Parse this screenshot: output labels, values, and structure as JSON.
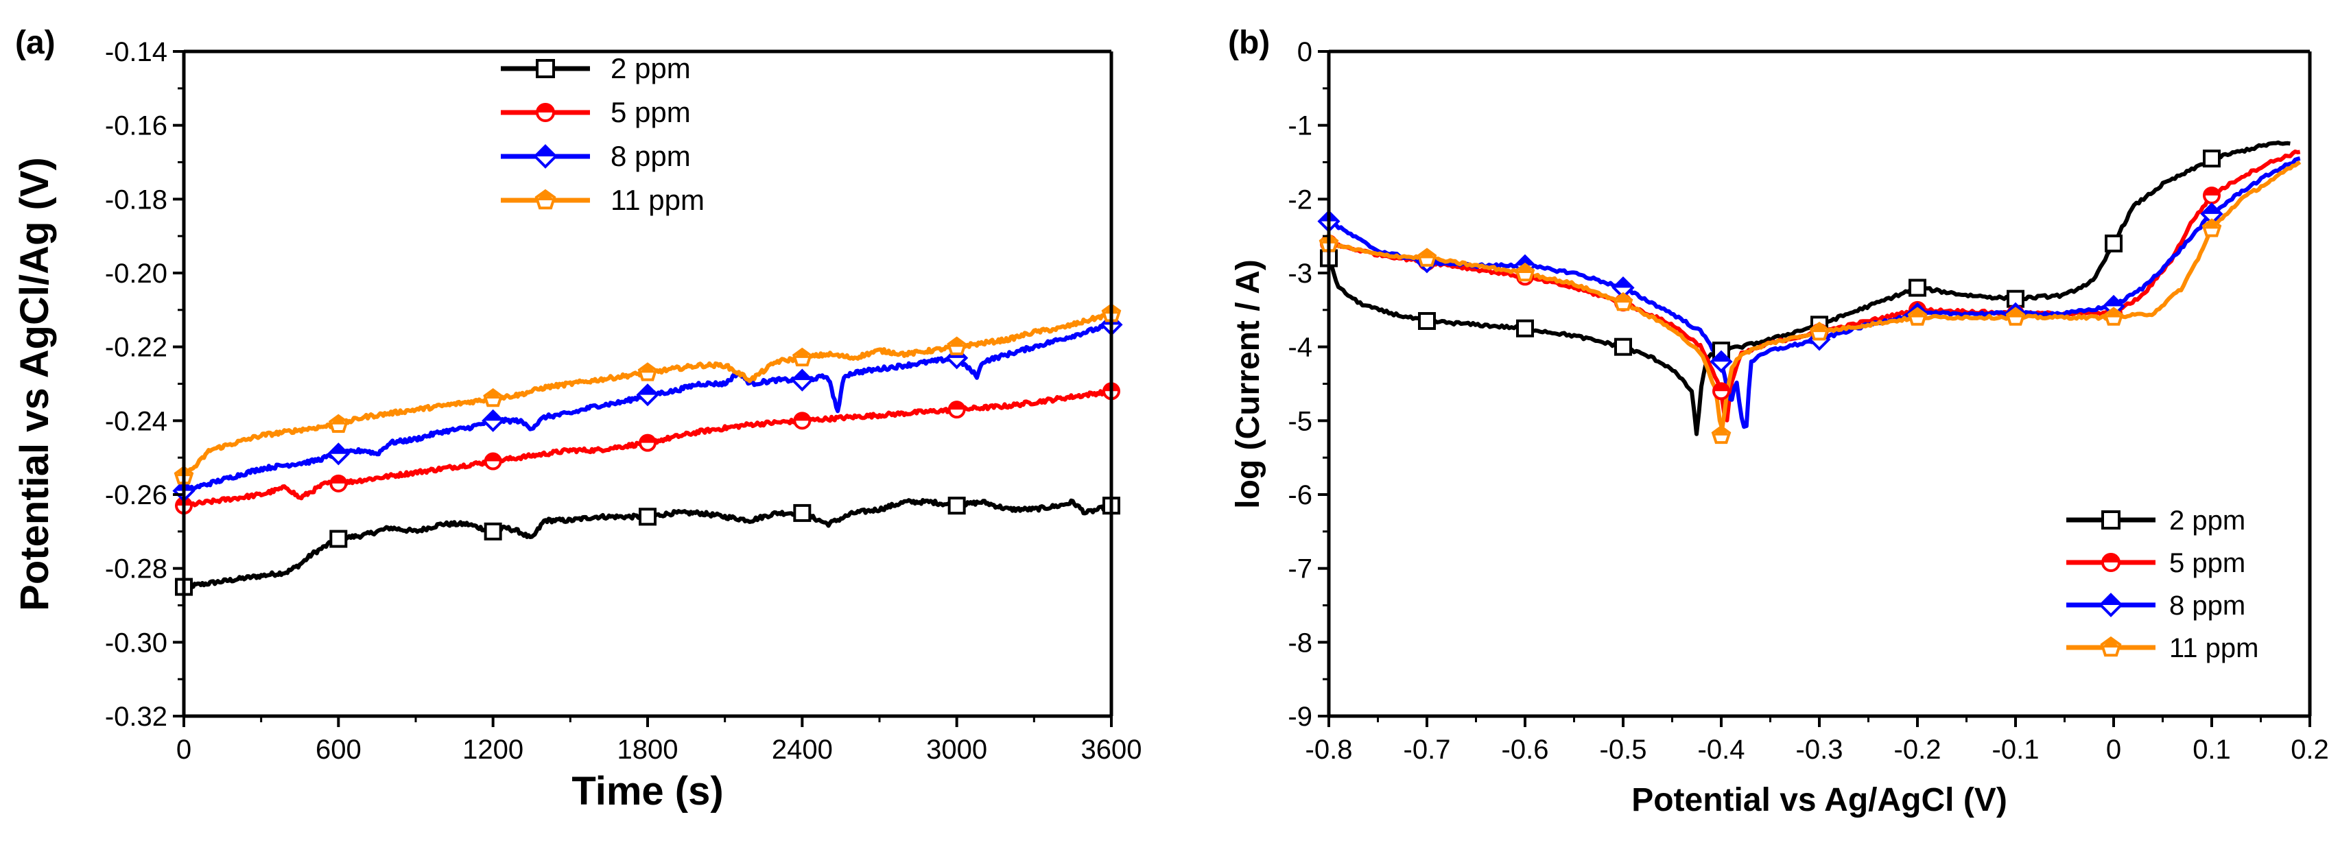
{
  "chart_data": [
    {
      "type": "line",
      "panel_label": "(a)",
      "title": "",
      "xlabel": "Time (s)",
      "ylabel": "Potential vs AgCl/Ag (V)",
      "xlim": [
        0,
        3600
      ],
      "ylim": [
        -0.32,
        -0.14
      ],
      "xticks": [
        0,
        600,
        1200,
        1800,
        2400,
        3000,
        3600
      ],
      "xtick_labels": [
        "0",
        "600",
        "1200",
        "1800",
        "2400",
        "3000",
        "3600"
      ],
      "yticks": [
        -0.32,
        -0.3,
        -0.28,
        -0.26,
        -0.24,
        -0.22,
        -0.2,
        -0.18,
        -0.16,
        -0.14
      ],
      "ytick_labels": [
        "-0.32",
        "-0.30",
        "-0.28",
        "-0.26",
        "-0.24",
        "-0.22",
        "-0.20",
        "-0.18",
        "-0.16",
        "-0.14"
      ],
      "grid": false,
      "legend_position": "top-center",
      "series": [
        {
          "name": "2 ppm",
          "color": "#000000",
          "marker": "square",
          "x": [
            0,
            100,
            200,
            300,
            400,
            450,
            500,
            600,
            700,
            800,
            900,
            1000,
            1100,
            1200,
            1250,
            1300,
            1350,
            1400,
            1500,
            1600,
            1700,
            1800,
            1900,
            2000,
            2100,
            2200,
            2300,
            2400,
            2500,
            2600,
            2700,
            2800,
            2900,
            3000,
            3100,
            3200,
            3300,
            3400,
            3450,
            3500,
            3600
          ],
          "y": [
            -0.285,
            -0.284,
            -0.283,
            -0.282,
            -0.281,
            -0.279,
            -0.276,
            -0.272,
            -0.271,
            -0.269,
            -0.27,
            -0.268,
            -0.268,
            -0.27,
            -0.269,
            -0.27,
            -0.272,
            -0.267,
            -0.267,
            -0.266,
            -0.266,
            -0.266,
            -0.265,
            -0.265,
            -0.266,
            -0.267,
            -0.265,
            -0.265,
            -0.268,
            -0.265,
            -0.264,
            -0.262,
            -0.262,
            -0.263,
            -0.262,
            -0.264,
            -0.264,
            -0.263,
            -0.262,
            -0.265,
            -0.263
          ]
        },
        {
          "name": "5 ppm",
          "color": "#ff0000",
          "marker": "circle",
          "x": [
            0,
            100,
            200,
            300,
            400,
            450,
            500,
            550,
            600,
            800,
            1000,
            1200,
            1400,
            1500,
            1600,
            1800,
            2000,
            2200,
            2400,
            2600,
            2800,
            3000,
            3200,
            3400,
            3600
          ],
          "y": [
            -0.263,
            -0.262,
            -0.261,
            -0.26,
            -0.258,
            -0.261,
            -0.259,
            -0.257,
            -0.257,
            -0.255,
            -0.253,
            -0.251,
            -0.249,
            -0.248,
            -0.248,
            -0.246,
            -0.243,
            -0.241,
            -0.24,
            -0.239,
            -0.238,
            -0.237,
            -0.236,
            -0.234,
            -0.232
          ]
        },
        {
          "name": "8 ppm",
          "color": "#0000ff",
          "marker": "diamond",
          "x": [
            0,
            100,
            200,
            300,
            400,
            500,
            600,
            700,
            750,
            800,
            900,
            1000,
            1100,
            1200,
            1300,
            1350,
            1400,
            1500,
            1600,
            1700,
            1800,
            1900,
            2000,
            2100,
            2150,
            2200,
            2300,
            2400,
            2500,
            2540,
            2560,
            2600,
            2800,
            3000,
            3080,
            3100,
            3200,
            3400,
            3600
          ],
          "y": [
            -0.259,
            -0.257,
            -0.255,
            -0.253,
            -0.252,
            -0.251,
            -0.249,
            -0.248,
            -0.249,
            -0.246,
            -0.245,
            -0.243,
            -0.242,
            -0.24,
            -0.24,
            -0.242,
            -0.239,
            -0.238,
            -0.236,
            -0.235,
            -0.233,
            -0.232,
            -0.23,
            -0.23,
            -0.227,
            -0.23,
            -0.229,
            -0.229,
            -0.228,
            -0.238,
            -0.228,
            -0.227,
            -0.225,
            -0.223,
            -0.228,
            -0.224,
            -0.222,
            -0.218,
            -0.214
          ]
        },
        {
          "name": "11 ppm",
          "color": "#ff8c00",
          "marker": "pentagon",
          "x": [
            0,
            50,
            100,
            200,
            300,
            400,
            500,
            600,
            700,
            800,
            900,
            1000,
            1100,
            1200,
            1300,
            1400,
            1500,
            1600,
            1700,
            1800,
            1900,
            2000,
            2100,
            2200,
            2300,
            2400,
            2500,
            2600,
            2700,
            2800,
            2900,
            3000,
            3100,
            3200,
            3300,
            3400,
            3500,
            3600
          ],
          "y": [
            -0.255,
            -0.252,
            -0.248,
            -0.246,
            -0.244,
            -0.243,
            -0.242,
            -0.241,
            -0.239,
            -0.238,
            -0.237,
            -0.236,
            -0.235,
            -0.234,
            -0.233,
            -0.231,
            -0.23,
            -0.229,
            -0.228,
            -0.227,
            -0.226,
            -0.225,
            -0.225,
            -0.229,
            -0.224,
            -0.223,
            -0.222,
            -0.223,
            -0.221,
            -0.222,
            -0.221,
            -0.22,
            -0.219,
            -0.218,
            -0.216,
            -0.215,
            -0.213,
            -0.211
          ]
        }
      ]
    },
    {
      "type": "line",
      "panel_label": "(b)",
      "title": "",
      "xlabel": "Potential vs Ag/AgCl (V)",
      "ylabel": "log (Current / A)",
      "xlim": [
        -0.8,
        0.2
      ],
      "ylim": [
        -9,
        0
      ],
      "xticks": [
        -0.8,
        -0.7,
        -0.6,
        -0.5,
        -0.4,
        -0.3,
        -0.2,
        -0.1,
        0,
        0.1,
        0.2
      ],
      "xtick_labels": [
        "-0.8",
        "-0.7",
        "-0.6",
        "-0.5",
        "-0.4",
        "-0.3",
        "-0.2",
        "-0.1",
        "0",
        "0.1",
        "0.2"
      ],
      "yticks": [
        -9,
        -8,
        -7,
        -6,
        -5,
        -4,
        -3,
        -2,
        -1,
        0
      ],
      "ytick_labels": [
        "-9",
        "-8",
        "-7",
        "-6",
        "-5",
        "-4",
        "-3",
        "-2",
        "-1",
        "0"
      ],
      "grid": false,
      "legend_position": "bottom-right",
      "series": [
        {
          "name": "2 ppm",
          "color": "#000000",
          "marker": "square",
          "x": [
            -0.8,
            -0.79,
            -0.77,
            -0.75,
            -0.72,
            -0.7,
            -0.65,
            -0.6,
            -0.55,
            -0.5,
            -0.47,
            -0.45,
            -0.43,
            -0.425,
            -0.42,
            -0.415,
            -0.41,
            -0.4,
            -0.38,
            -0.35,
            -0.3,
            -0.25,
            -0.2,
            -0.15,
            -0.1,
            -0.05,
            -0.02,
            0,
            0.02,
            0.05,
            0.08,
            0.1,
            0.13,
            0.16,
            0.18
          ],
          "y": [
            -2.8,
            -3.2,
            -3.4,
            -3.5,
            -3.6,
            -3.65,
            -3.7,
            -3.75,
            -3.85,
            -4.0,
            -4.15,
            -4.3,
            -4.6,
            -5.2,
            -4.5,
            -4.2,
            -4.1,
            -4.05,
            -4.0,
            -3.9,
            -3.7,
            -3.45,
            -3.2,
            -3.3,
            -3.35,
            -3.3,
            -3.1,
            -2.6,
            -2.1,
            -1.8,
            -1.6,
            -1.45,
            -1.35,
            -1.25,
            -1.25
          ]
        },
        {
          "name": "5 ppm",
          "color": "#ff0000",
          "marker": "circle",
          "x": [
            -0.8,
            -0.75,
            -0.7,
            -0.65,
            -0.6,
            -0.55,
            -0.5,
            -0.45,
            -0.42,
            -0.4,
            -0.395,
            -0.39,
            -0.38,
            -0.35,
            -0.3,
            -0.25,
            -0.2,
            -0.15,
            -0.1,
            -0.05,
            0,
            0.03,
            0.06,
            0.08,
            0.1,
            0.13,
            0.16,
            0.19
          ],
          "y": [
            -2.6,
            -2.75,
            -2.85,
            -2.95,
            -3.05,
            -3.2,
            -3.4,
            -3.7,
            -4.0,
            -4.6,
            -5.1,
            -4.5,
            -4.1,
            -3.95,
            -3.8,
            -3.65,
            -3.5,
            -3.52,
            -3.55,
            -3.55,
            -3.55,
            -3.3,
            -2.8,
            -2.3,
            -1.95,
            -1.7,
            -1.5,
            -1.35
          ]
        },
        {
          "name": "8 ppm",
          "color": "#0000ff",
          "marker": "diamond",
          "x": [
            -0.8,
            -0.75,
            -0.7,
            -0.65,
            -0.6,
            -0.55,
            -0.5,
            -0.45,
            -0.42,
            -0.4,
            -0.39,
            -0.385,
            -0.38,
            -0.375,
            -0.37,
            -0.35,
            -0.3,
            -0.25,
            -0.2,
            -0.15,
            -0.1,
            -0.05,
            0,
            0.03,
            0.06,
            0.08,
            0.1,
            0.13,
            0.16,
            0.19
          ],
          "y": [
            -2.3,
            -2.7,
            -2.85,
            -2.9,
            -2.9,
            -3.0,
            -3.2,
            -3.55,
            -3.8,
            -4.2,
            -4.8,
            -4.4,
            -4.9,
            -5.2,
            -4.2,
            -4.05,
            -3.9,
            -3.7,
            -3.55,
            -3.55,
            -3.55,
            -3.55,
            -3.45,
            -3.2,
            -2.8,
            -2.5,
            -2.2,
            -1.9,
            -1.65,
            -1.45
          ]
        },
        {
          "name": "11 ppm",
          "color": "#ff8c00",
          "marker": "pentagon",
          "x": [
            -0.8,
            -0.75,
            -0.7,
            -0.65,
            -0.6,
            -0.55,
            -0.5,
            -0.45,
            -0.42,
            -0.405,
            -0.4,
            -0.395,
            -0.39,
            -0.38,
            -0.35,
            -0.3,
            -0.25,
            -0.2,
            -0.15,
            -0.1,
            -0.05,
            0,
            0.04,
            0.07,
            0.09,
            0.1,
            0.13,
            0.16,
            0.19
          ],
          "y": [
            -2.6,
            -2.75,
            -2.8,
            -2.9,
            -3.0,
            -3.15,
            -3.4,
            -3.75,
            -4.1,
            -4.6,
            -5.2,
            -4.7,
            -4.3,
            -4.1,
            -3.95,
            -3.8,
            -3.7,
            -3.6,
            -3.6,
            -3.6,
            -3.6,
            -3.6,
            -3.55,
            -3.2,
            -2.7,
            -2.4,
            -2.0,
            -1.75,
            -1.5
          ]
        }
      ]
    }
  ]
}
